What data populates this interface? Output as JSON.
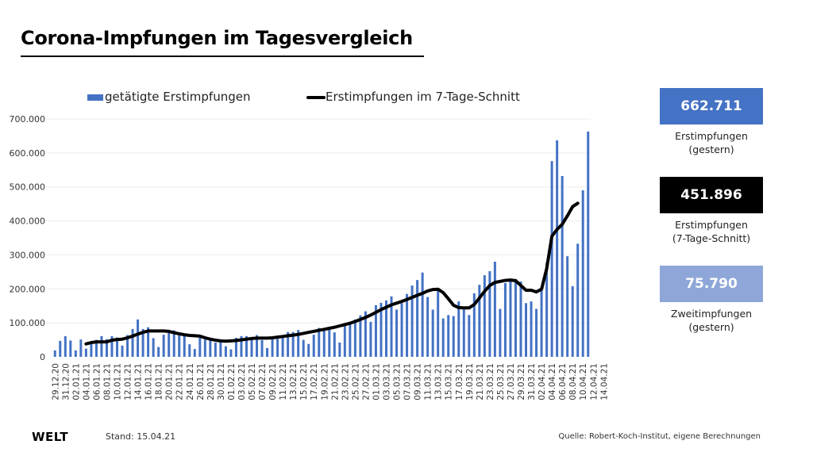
{
  "header": {
    "title": "Corona-Impfungen im Tagesvergleich"
  },
  "kpis": [
    {
      "value": "662.711",
      "label_line1": "Erstimpfungen",
      "label_line2": "(gestern)",
      "color": "#4472c4"
    },
    {
      "value": "451.896",
      "label_line1": "Erstimpfungen",
      "label_line2": "(7-Tage-Schnitt)",
      "color": "#000000"
    },
    {
      "value": "75.790",
      "label_line1": "Zweitimpfungen",
      "label_line2": "(gestern)",
      "color": "#8ea7d8"
    }
  ],
  "footer": {
    "logo": "WELT",
    "stand": "Stand:  15.04.21",
    "source": "Quelle: Robert-Koch-Institut, eigene Berechnungen"
  },
  "chart_data": {
    "type": "bar",
    "title": "Corona-Impfungen im Tagesvergleich",
    "xlabel": "",
    "ylabel": "",
    "ylim": [
      0,
      700000
    ],
    "yticks": [
      0,
      100000,
      200000,
      300000,
      400000,
      500000,
      600000,
      700000
    ],
    "ytick_labels": [
      "0",
      "100.000",
      "200.000",
      "300.000",
      "400.000",
      "500.000",
      "600.000",
      "700.000"
    ],
    "grid": true,
    "legend_position": "top",
    "x_tick_labels": [
      "29.12.20",
      "31.12.20",
      "02.01.21",
      "04.01.21",
      "06.01.21",
      "08.01.21",
      "10.01.21",
      "12.01.21",
      "14.01.21",
      "16.01.21",
      "18.01.21",
      "20.01.21",
      "22.01.21",
      "24.01.21",
      "26.01.21",
      "28.01.21",
      "30.01.21",
      "01.02.21",
      "03.02.21",
      "05.02.21",
      "07.02.21",
      "09.02.21",
      "11.02.21",
      "13.02.21",
      "15.02.21",
      "17.02.21",
      "19.02.21",
      "21.02.21",
      "23.02.21",
      "25.02.21",
      "27.02.21",
      "01.03.21",
      "03.03.21",
      "05.03.21",
      "07.03.21",
      "09.03.21",
      "11.03.21",
      "13.03.21",
      "15.03.21",
      "17.03.21",
      "19.03.21",
      "21.03.21",
      "23.03.21",
      "25.03.21",
      "27.03.21",
      "29.03.21",
      "31.03.21",
      "02.04.21",
      "04.04.21",
      "06.04.21",
      "08.04.21",
      "10.04.21",
      "12.04.21",
      "14.04.21"
    ],
    "series": [
      {
        "name": "getätigte Erstimpfungen",
        "type": "bar",
        "color": "#4472c4",
        "values": [
          19000,
          47000,
          61000,
          48000,
          19000,
          51000,
          24000,
          44000,
          50000,
          61000,
          52000,
          61000,
          57000,
          33000,
          64000,
          82000,
          110000,
          82000,
          87000,
          55000,
          29000,
          65000,
          71000,
          78000,
          64000,
          61000,
          37000,
          23000,
          56000,
          51000,
          48000,
          42000,
          44000,
          31000,
          22000,
          56000,
          61000,
          61000,
          57000,
          64000,
          49000,
          26000,
          53000,
          53000,
          59000,
          73000,
          73000,
          79000,
          50000,
          38000,
          65000,
          85000,
          83000,
          88000,
          72000,
          42000,
          94000,
          98000,
          110000,
          122000,
          134000,
          103000,
          152000,
          159000,
          166000,
          178000,
          139000,
          158000,
          185000,
          210000,
          226000,
          248000,
          176000,
          139000,
          203000,
          113000,
          123000,
          120000,
          163000,
          147000,
          123000,
          187000,
          212000,
          240000,
          252000,
          280000,
          141000,
          217000,
          225000,
          229000,
          222000,
          158000,
          163000,
          141000,
          196000,
          277000,
          576000,
          637000,
          532000,
          296000,
          208000,
          333000,
          490000,
          663000
        ]
      },
      {
        "name": "Erstimpfungen im 7-Tage-Schnitt",
        "type": "line",
        "color": "#000000",
        "start_index": 6,
        "values": [
          38000,
          42000,
          44000,
          44000,
          44000,
          49000,
          51000,
          52000,
          56000,
          61000,
          67000,
          72000,
          76000,
          76000,
          76000,
          76000,
          75000,
          71000,
          68000,
          65000,
          63000,
          62000,
          61000,
          56000,
          52000,
          49000,
          47000,
          46000,
          47000,
          48000,
          50000,
          52000,
          54000,
          55000,
          55000,
          55000,
          56000,
          58000,
          60000,
          62000,
          64000,
          66000,
          69000,
          72000,
          75000,
          78000,
          81000,
          84000,
          87000,
          91000,
          95000,
          99000,
          104000,
          110000,
          116000,
          123000,
          131000,
          139000,
          146000,
          153000,
          158000,
          163000,
          169000,
          175000,
          181000,
          187000,
          194000,
          198000,
          199000,
          189000,
          171000,
          152000,
          145000,
          144000,
          144000,
          154000,
          173000,
          193000,
          210000,
          219000,
          222000,
          225000,
          226000,
          224000,
          210000,
          196000,
          196000,
          191000,
          199000,
          260000,
          355000,
          375000,
          390000,
          415000,
          442000,
          452000
        ]
      }
    ]
  }
}
